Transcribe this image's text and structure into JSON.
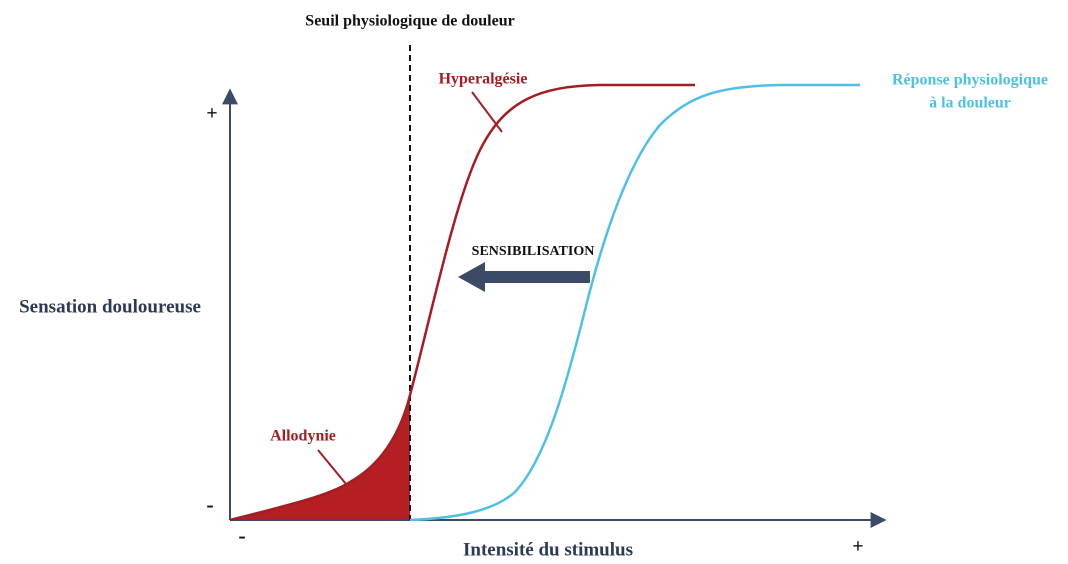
{
  "title": "Seuil physiologique de douleur",
  "y_axis": {
    "label": "Sensation douloureuse",
    "top": "+",
    "bottom": "-"
  },
  "x_axis": {
    "label": "Intensité du stimulus",
    "left": "-",
    "right": "+"
  },
  "curves": [
    {
      "label": "Hyperalgésie"
    },
    {
      "label_lines": [
        "Réponse physiologique",
        "à la douleur"
      ]
    }
  ],
  "area": {
    "label": "Allodynie"
  },
  "arrow": {
    "label": "SENSIBILISATION"
  }
}
